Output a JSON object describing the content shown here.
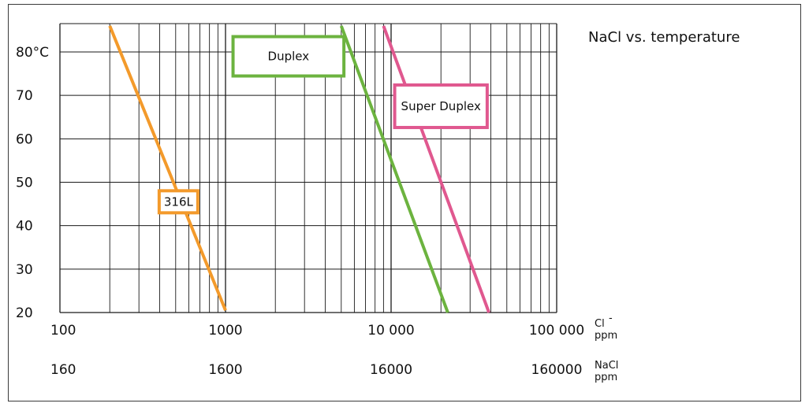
{
  "chart_data": {
    "type": "line",
    "title": "NaCl vs. temperature",
    "x_scale": "log",
    "xlim": [
      100,
      100000
    ],
    "ylim": [
      20,
      85
    ],
    "y_ticks": [
      {
        "value": 80,
        "label": "80°C"
      },
      {
        "value": 70,
        "label": "70"
      },
      {
        "value": 60,
        "label": "60"
      },
      {
        "value": 50,
        "label": "50"
      },
      {
        "value": 40,
        "label": "40"
      },
      {
        "value": 30,
        "label": "30"
      },
      {
        "value": 20,
        "label": "20"
      }
    ],
    "x_ticks_cl": [
      {
        "value": 100,
        "label": "100"
      },
      {
        "value": 1000,
        "label": "1000"
      },
      {
        "value": 10000,
        "label": "10 000"
      },
      {
        "value": 100000,
        "label": "100 000"
      }
    ],
    "x_ticks_nacl": [
      {
        "value": 100,
        "label": "160"
      },
      {
        "value": 1000,
        "label": "1600"
      },
      {
        "value": 10000,
        "label": "16000"
      },
      {
        "value": 100000,
        "label": "160000"
      }
    ],
    "xlabel_cl": {
      "main": "Cl",
      "sup": "-",
      "unit": "ppm"
    },
    "xlabel_nacl": {
      "main": "NaCl",
      "unit": "ppm"
    },
    "grid": true,
    "series": [
      {
        "name": "316L",
        "color": "#f39a2b",
        "label_at": [
          520,
          45.5
        ],
        "points": [
          [
            200,
            86
          ],
          [
            1000,
            20.5
          ]
        ]
      },
      {
        "name": "Duplex",
        "color": "#6cb33f",
        "label_at": [
          2400,
          79
        ],
        "points": [
          [
            5000,
            86
          ],
          [
            22000,
            20
          ]
        ]
      },
      {
        "name": "Super Duplex",
        "color": "#e0588f",
        "label_at": [
          20000,
          67.5
        ],
        "points": [
          [
            9000,
            86
          ],
          [
            39000,
            20
          ]
        ]
      }
    ]
  }
}
